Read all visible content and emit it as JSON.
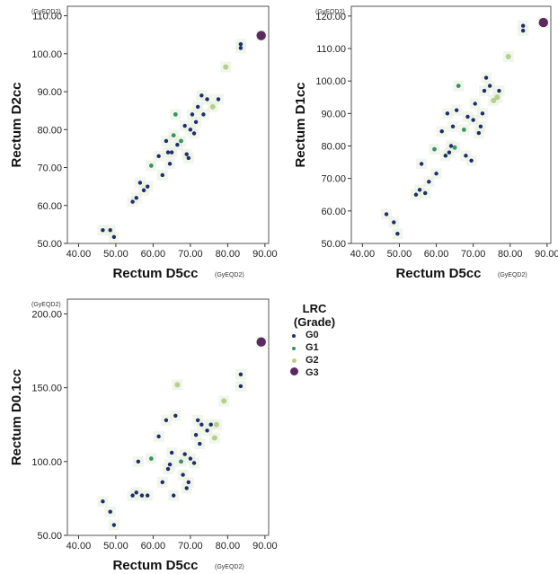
{
  "colors": {
    "G0": "#1f2d6b",
    "G1": "#3f8f6a",
    "G2": "#b6cf8a",
    "G3": "#5b2a5e",
    "halo": "#e7f0df",
    "frame": "#555555"
  },
  "legend": {
    "title_line1": "LRC",
    "title_line2": "(Grade)",
    "items": [
      {
        "label": "G0",
        "color": "#1f2d6b",
        "size": 4
      },
      {
        "label": "G1",
        "color": "#3f8f6a",
        "size": 4
      },
      {
        "label": "G2",
        "color": "#b6cf8a",
        "size": 5
      },
      {
        "label": "G3",
        "color": "#5b2a5e",
        "size": 9
      }
    ]
  },
  "chart_data": [
    {
      "type": "scatter",
      "xlabel": "Rectum D5cc",
      "ylabel": "Rectum D2cc",
      "x_unit": "(GyEQD2)",
      "y_unit": "(GyEQD2)",
      "xlim": [
        37.0,
        91.0
      ],
      "ylim": [
        50.0,
        112.5
      ],
      "xticks": [
        "40.00",
        "50.00",
        "60.00",
        "70.00",
        "80.00",
        "90.00"
      ],
      "yticks": [
        "50.00",
        "60.00",
        "70.00",
        "80.00",
        "90.00",
        "100.00",
        "110.00"
      ],
      "xtick_values": [
        40,
        50,
        60,
        70,
        80,
        90
      ],
      "ytick_values": [
        50,
        60,
        70,
        80,
        90,
        100,
        110
      ],
      "points": [
        {
          "x": 46.5,
          "y": 53.5,
          "g": "G0"
        },
        {
          "x": 48.5,
          "y": 53.5,
          "g": "G0"
        },
        {
          "x": 49.5,
          "y": 51.7,
          "g": "G0"
        },
        {
          "x": 54.5,
          "y": 61.0,
          "g": "G0"
        },
        {
          "x": 55.5,
          "y": 62.0,
          "g": "G0"
        },
        {
          "x": 56.5,
          "y": 66.0,
          "g": "G0"
        },
        {
          "x": 57.5,
          "y": 64.0,
          "g": "G0"
        },
        {
          "x": 58.5,
          "y": 65.0,
          "g": "G0"
        },
        {
          "x": 59.5,
          "y": 70.5,
          "g": "G1"
        },
        {
          "x": 61.5,
          "y": 73.0,
          "g": "G0"
        },
        {
          "x": 62.5,
          "y": 68.0,
          "g": "G0"
        },
        {
          "x": 63.5,
          "y": 77.0,
          "g": "G0"
        },
        {
          "x": 64.0,
          "y": 74.0,
          "g": "G0"
        },
        {
          "x": 64.5,
          "y": 71.0,
          "g": "G0"
        },
        {
          "x": 65.0,
          "y": 74.0,
          "g": "G0"
        },
        {
          "x": 65.5,
          "y": 78.5,
          "g": "G1"
        },
        {
          "x": 66.0,
          "y": 84.0,
          "g": "G1"
        },
        {
          "x": 66.5,
          "y": 76.0,
          "g": "G0"
        },
        {
          "x": 67.5,
          "y": 77.0,
          "g": "G1"
        },
        {
          "x": 68.5,
          "y": 81.0,
          "g": "G0"
        },
        {
          "x": 69.0,
          "y": 73.5,
          "g": "G0"
        },
        {
          "x": 69.5,
          "y": 72.5,
          "g": "G0"
        },
        {
          "x": 70.0,
          "y": 80.0,
          "g": "G0"
        },
        {
          "x": 70.5,
          "y": 84.0,
          "g": "G0"
        },
        {
          "x": 71.0,
          "y": 79.0,
          "g": "G0"
        },
        {
          "x": 71.5,
          "y": 82.0,
          "g": "G0"
        },
        {
          "x": 72.0,
          "y": 86.0,
          "g": "G0"
        },
        {
          "x": 73.0,
          "y": 89.0,
          "g": "G0"
        },
        {
          "x": 73.5,
          "y": 84.0,
          "g": "G0"
        },
        {
          "x": 74.5,
          "y": 88.0,
          "g": "G0"
        },
        {
          "x": 76.0,
          "y": 86.0,
          "g": "G2"
        },
        {
          "x": 77.5,
          "y": 88.0,
          "g": "G0"
        },
        {
          "x": 79.5,
          "y": 96.5,
          "g": "G2"
        },
        {
          "x": 83.5,
          "y": 101.5,
          "g": "G0"
        },
        {
          "x": 83.5,
          "y": 102.5,
          "g": "G0"
        },
        {
          "x": 89.0,
          "y": 104.8,
          "g": "G3"
        }
      ]
    },
    {
      "type": "scatter",
      "xlabel": "Rectum D5cc",
      "ylabel": "Rectum D1cc",
      "x_unit": "(GyEQD2)",
      "y_unit": "(GyEQD2)",
      "xlim": [
        37.0,
        91.0
      ],
      "ylim": [
        50.0,
        123.0
      ],
      "xticks": [
        "40.00",
        "50.00",
        "60.00",
        "70.00",
        "80.00",
        "90.00"
      ],
      "yticks": [
        "50.00",
        "60.00",
        "70.00",
        "80.00",
        "90.00",
        "100.00",
        "110.00",
        "120.00"
      ],
      "xtick_values": [
        40,
        50,
        60,
        70,
        80,
        90
      ],
      "ytick_values": [
        50,
        60,
        70,
        80,
        90,
        100,
        110,
        120
      ],
      "points": [
        {
          "x": 46.5,
          "y": 59.0,
          "g": "G0"
        },
        {
          "x": 48.5,
          "y": 56.5,
          "g": "G0"
        },
        {
          "x": 49.5,
          "y": 53.0,
          "g": "G0"
        },
        {
          "x": 54.5,
          "y": 65.0,
          "g": "G0"
        },
        {
          "x": 55.5,
          "y": 66.5,
          "g": "G0"
        },
        {
          "x": 56.0,
          "y": 74.5,
          "g": "G0"
        },
        {
          "x": 57.0,
          "y": 65.5,
          "g": "G0"
        },
        {
          "x": 58.0,
          "y": 69.0,
          "g": "G0"
        },
        {
          "x": 59.5,
          "y": 79.0,
          "g": "G1"
        },
        {
          "x": 60.0,
          "y": 71.5,
          "g": "G0"
        },
        {
          "x": 61.5,
          "y": 84.5,
          "g": "G0"
        },
        {
          "x": 62.5,
          "y": 77.0,
          "g": "G0"
        },
        {
          "x": 63.0,
          "y": 90.0,
          "g": "G0"
        },
        {
          "x": 63.5,
          "y": 78.0,
          "g": "G0"
        },
        {
          "x": 64.0,
          "y": 80.0,
          "g": "G0"
        },
        {
          "x": 64.5,
          "y": 86.0,
          "g": "G0"
        },
        {
          "x": 65.0,
          "y": 79.5,
          "g": "G1"
        },
        {
          "x": 65.5,
          "y": 91.0,
          "g": "G0"
        },
        {
          "x": 66.0,
          "y": 98.5,
          "g": "G1"
        },
        {
          "x": 67.5,
          "y": 85.0,
          "g": "G1"
        },
        {
          "x": 68.0,
          "y": 77.0,
          "g": "G0"
        },
        {
          "x": 68.5,
          "y": 89.0,
          "g": "G0"
        },
        {
          "x": 69.5,
          "y": 75.5,
          "g": "G0"
        },
        {
          "x": 70.0,
          "y": 88.0,
          "g": "G0"
        },
        {
          "x": 70.5,
          "y": 93.0,
          "g": "G0"
        },
        {
          "x": 71.5,
          "y": 84.0,
          "g": "G0"
        },
        {
          "x": 72.0,
          "y": 86.0,
          "g": "G0"
        },
        {
          "x": 72.5,
          "y": 90.0,
          "g": "G0"
        },
        {
          "x": 73.0,
          "y": 97.0,
          "g": "G0"
        },
        {
          "x": 73.5,
          "y": 101.0,
          "g": "G0"
        },
        {
          "x": 74.5,
          "y": 98.5,
          "g": "G0"
        },
        {
          "x": 75.5,
          "y": 94.0,
          "g": "G2"
        },
        {
          "x": 76.5,
          "y": 95.0,
          "g": "G2"
        },
        {
          "x": 77.0,
          "y": 97.0,
          "g": "G0"
        },
        {
          "x": 79.5,
          "y": 107.5,
          "g": "G2"
        },
        {
          "x": 83.5,
          "y": 115.5,
          "g": "G0"
        },
        {
          "x": 83.5,
          "y": 117.0,
          "g": "G0"
        },
        {
          "x": 89.0,
          "y": 118.0,
          "g": "G3"
        }
      ]
    },
    {
      "type": "scatter",
      "xlabel": "Rectum D5cc",
      "ylabel": "Rectum D0.1cc",
      "x_unit": "(GyEQD2)",
      "y_unit": "(GyEQD2)",
      "xlim": [
        37.0,
        91.0
      ],
      "ylim": [
        50.0,
        210.0
      ],
      "xticks": [
        "40.00",
        "50.00",
        "60.00",
        "70.00",
        "80.00",
        "90.00"
      ],
      "yticks": [
        "50.00",
        "100.00",
        "150.00",
        "200.00"
      ],
      "xtick_values": [
        40,
        50,
        60,
        70,
        80,
        90
      ],
      "ytick_values": [
        50,
        100,
        150,
        200
      ],
      "points": [
        {
          "x": 46.5,
          "y": 73.0,
          "g": "G0"
        },
        {
          "x": 48.5,
          "y": 66.0,
          "g": "G0"
        },
        {
          "x": 49.5,
          "y": 57.0,
          "g": "G0"
        },
        {
          "x": 54.5,
          "y": 77.0,
          "g": "G0"
        },
        {
          "x": 55.5,
          "y": 79.0,
          "g": "G0"
        },
        {
          "x": 56.0,
          "y": 100.0,
          "g": "G0"
        },
        {
          "x": 57.0,
          "y": 77.0,
          "g": "G0"
        },
        {
          "x": 58.5,
          "y": 77.0,
          "g": "G0"
        },
        {
          "x": 59.5,
          "y": 102.0,
          "g": "G1"
        },
        {
          "x": 61.5,
          "y": 117.0,
          "g": "G0"
        },
        {
          "x": 62.5,
          "y": 86.0,
          "g": "G0"
        },
        {
          "x": 63.5,
          "y": 128.0,
          "g": "G0"
        },
        {
          "x": 64.0,
          "y": 95.0,
          "g": "G0"
        },
        {
          "x": 64.5,
          "y": 98.0,
          "g": "G0"
        },
        {
          "x": 65.0,
          "y": 106.0,
          "g": "G0"
        },
        {
          "x": 65.5,
          "y": 77.0,
          "g": "G0"
        },
        {
          "x": 66.0,
          "y": 131.0,
          "g": "G0"
        },
        {
          "x": 66.5,
          "y": 152.0,
          "g": "G2"
        },
        {
          "x": 67.5,
          "y": 100.0,
          "g": "G1"
        },
        {
          "x": 68.0,
          "y": 91.0,
          "g": "G0"
        },
        {
          "x": 68.5,
          "y": 105.0,
          "g": "G0"
        },
        {
          "x": 69.0,
          "y": 82.0,
          "g": "G0"
        },
        {
          "x": 69.5,
          "y": 86.0,
          "g": "G0"
        },
        {
          "x": 70.0,
          "y": 102.0,
          "g": "G0"
        },
        {
          "x": 71.0,
          "y": 99.0,
          "g": "G0"
        },
        {
          "x": 71.5,
          "y": 118.0,
          "g": "G0"
        },
        {
          "x": 72.0,
          "y": 128.0,
          "g": "G0"
        },
        {
          "x": 72.5,
          "y": 112.0,
          "g": "G0"
        },
        {
          "x": 73.0,
          "y": 125.0,
          "g": "G0"
        },
        {
          "x": 74.5,
          "y": 121.0,
          "g": "G0"
        },
        {
          "x": 75.5,
          "y": 125.0,
          "g": "G0"
        },
        {
          "x": 76.5,
          "y": 116.0,
          "g": "G2"
        },
        {
          "x": 77.0,
          "y": 125.0,
          "g": "G2"
        },
        {
          "x": 79.0,
          "y": 141.0,
          "g": "G2"
        },
        {
          "x": 83.5,
          "y": 151.0,
          "g": "G0"
        },
        {
          "x": 83.5,
          "y": 159.0,
          "g": "G0"
        },
        {
          "x": 89.0,
          "y": 181.0,
          "g": "G3"
        }
      ]
    }
  ]
}
